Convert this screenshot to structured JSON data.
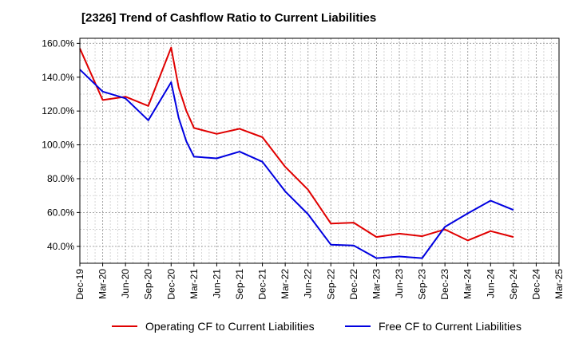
{
  "chart_data": {
    "type": "line",
    "title": "[2326]  Trend of Cashflow Ratio to Current Liabilities",
    "xlabel": "",
    "ylabel": "",
    "ylim": [
      30,
      163
    ],
    "y_ticks": [
      40,
      60,
      80,
      100,
      120,
      140,
      160
    ],
    "y_tick_format": "percent_1dp",
    "x_tick_labels": [
      "Dec-19",
      "Mar-20",
      "Jun-20",
      "Sep-20",
      "Dec-20",
      "Mar-21",
      "Jun-21",
      "Sep-21",
      "Dec-21",
      "Mar-22",
      "Jun-22",
      "Sep-22",
      "Dec-22",
      "Mar-23",
      "Jun-23",
      "Sep-23",
      "Dec-23",
      "Mar-24",
      "Jun-24",
      "Sep-24",
      "Dec-24",
      "Mar-25"
    ],
    "x_range_quarters": [
      0,
      21
    ],
    "grid": true,
    "legend_position": "bottom",
    "series": [
      {
        "name": "Operating CF to Current Liabilities",
        "color": "#e00000",
        "x": [
          0,
          1,
          2,
          3,
          4,
          4.33,
          4.67,
          5,
          6,
          7,
          8,
          9,
          10,
          11,
          12,
          13,
          14,
          15,
          16,
          17,
          18,
          19
        ],
        "y": [
          157,
          126.5,
          128.5,
          123,
          157.5,
          134,
          120,
          110,
          106.5,
          109.5,
          104.5,
          87,
          73.5,
          53.5,
          54,
          45.5,
          47.5,
          46,
          50,
          43.5,
          49,
          45.5
        ]
      },
      {
        "name": "Free CF to Current Liabilities",
        "color": "#0000e0",
        "x": [
          0,
          1,
          2,
          3,
          4,
          4.33,
          4.67,
          5,
          6,
          7,
          8,
          9,
          10,
          11,
          12,
          13,
          14,
          15,
          16,
          17,
          18,
          19
        ],
        "y": [
          144.5,
          131.5,
          127.5,
          114.5,
          137,
          116,
          102,
          93,
          92,
          96,
          90,
          72.5,
          59,
          41,
          40.5,
          33,
          34,
          33,
          51.5,
          59.5,
          67,
          61.5
        ]
      }
    ]
  }
}
